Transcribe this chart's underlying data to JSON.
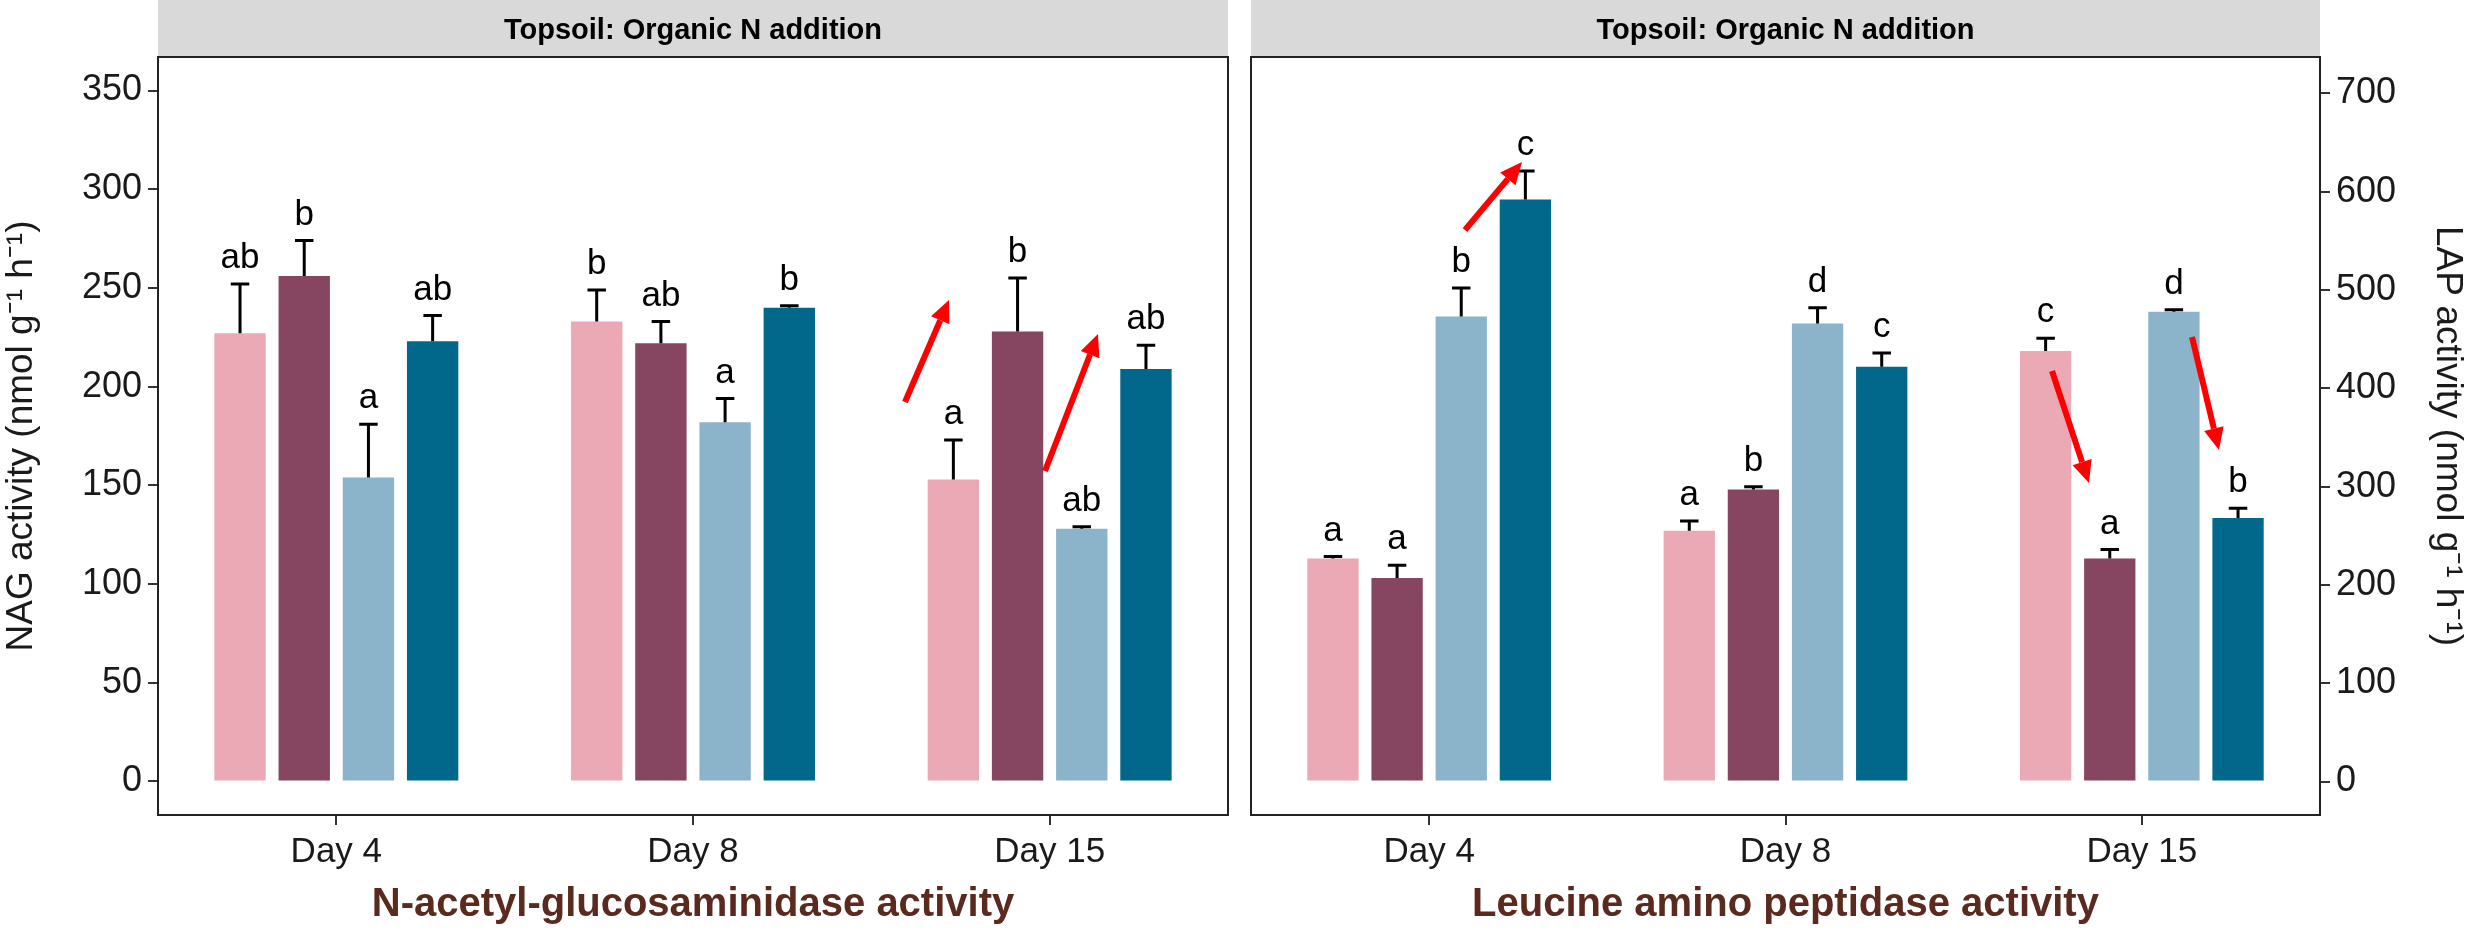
{
  "chart_data": [
    {
      "type": "bar",
      "title": "Topsoil: Organic N addition",
      "ylabel": "NAG activity (nmol g⁻¹ h⁻¹)",
      "annotations": [
        "N-acetyl-glucosaminidase activity"
      ],
      "categories": [
        "Day 4",
        "Day 8",
        "Day 15"
      ],
      "ylim": [
        -17,
        367
      ],
      "yticks": [
        0,
        50,
        100,
        150,
        200,
        250,
        300,
        350
      ],
      "grid": false,
      "legend": false,
      "series": [
        {
          "color": "#eba9b6",
          "values": [
            227,
            233,
            153
          ],
          "errors": [
            [
              227,
              252
            ],
            [
              233,
              249
            ],
            [
              153,
              173
            ]
          ],
          "value_labels": [
            "ab",
            "b",
            "a"
          ]
        },
        {
          "color": "#864560",
          "values": [
            256,
            222,
            228
          ],
          "errors": [
            [
              256,
              274
            ],
            [
              222,
              233
            ],
            [
              228,
              255
            ]
          ],
          "value_labels": [
            "b",
            "ab",
            "b"
          ]
        },
        {
          "color": "#8bb4ca",
          "values": [
            154,
            182,
            128
          ],
          "errors": [
            [
              154,
              181
            ],
            [
              182,
              194
            ],
            [
              128,
              129
            ]
          ],
          "value_labels": [
            "a",
            "a",
            "ab"
          ]
        },
        {
          "color": "#02688b",
          "values": [
            223,
            240,
            209
          ],
          "errors": [
            [
              223,
              236
            ],
            [
              240,
              241
            ],
            [
              209,
              221
            ]
          ],
          "value_labels": [
            "ab",
            "b",
            "ab"
          ]
        }
      ]
    },
    {
      "type": "bar",
      "title": "Topsoil: Organic N addition",
      "y2label": "LAP activity (nmol g⁻¹ h⁻¹)",
      "annotations": [
        "Leucine amino peptidase activity"
      ],
      "categories": [
        "Day 4",
        "Day 8",
        "Day 15"
      ],
      "y2lim": [
        -34,
        737
      ],
      "y2ticks": [
        0,
        100,
        200,
        300,
        400,
        500,
        600,
        700
      ],
      "grid": false,
      "legend": false,
      "series": [
        {
          "color": "#eba9b6",
          "axis": "y2",
          "values": [
            227,
            255,
            438
          ],
          "errors": [
            [
              227,
              229
            ],
            [
              255,
              265
            ],
            [
              438,
              451
            ]
          ],
          "value_labels": [
            "a",
            "a",
            "c"
          ]
        },
        {
          "color": "#864560",
          "axis": "y2",
          "values": [
            207,
            297,
            227
          ],
          "errors": [
            [
              207,
              220
            ],
            [
              297,
              300
            ],
            [
              227,
              236
            ]
          ],
          "value_labels": [
            "a",
            "b",
            "a"
          ]
        },
        {
          "color": "#8bb4ca",
          "axis": "y2",
          "values": [
            473,
            466,
            478
          ],
          "errors": [
            [
              473,
              502
            ],
            [
              466,
              482
            ],
            [
              478,
              480
            ]
          ],
          "value_labels": [
            "b",
            "d",
            "d"
          ]
        },
        {
          "color": "#02688b",
          "axis": "y2",
          "values": [
            592,
            422,
            268
          ],
          "errors": [
            [
              592,
              621
            ],
            [
              422,
              436
            ],
            [
              268,
              278
            ]
          ],
          "value_labels": [
            "c",
            "c",
            "b"
          ]
        }
      ]
    }
  ]
}
